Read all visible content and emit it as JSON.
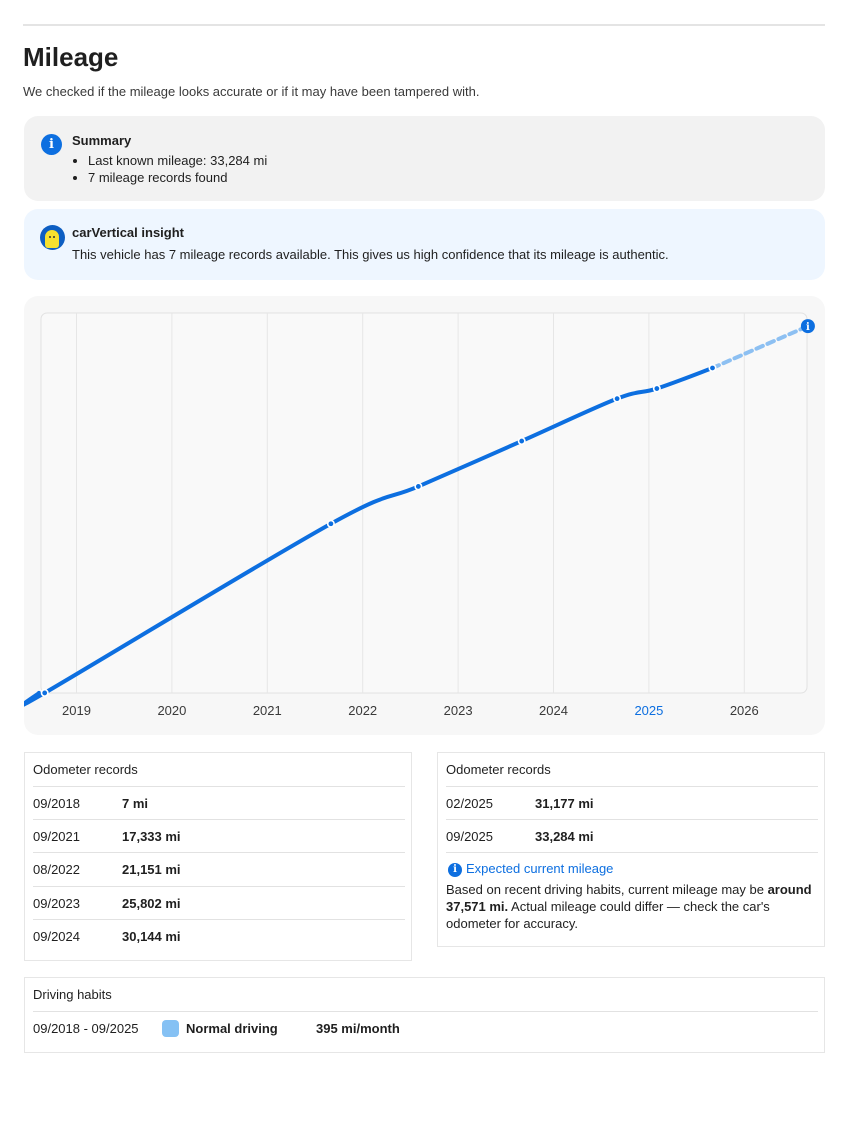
{
  "page": {
    "title": "Mileage",
    "subtitle": "We checked if the mileage looks accurate or if it may have been tampered with."
  },
  "summary": {
    "title": "Summary",
    "items": [
      "Last known mileage: 33,284 mi",
      "7 mileage records found"
    ]
  },
  "insight": {
    "title": "carVertical insight",
    "text": "This vehicle has 7 mileage records available. This gives us high confidence that its mileage is authentic."
  },
  "chart_data": {
    "type": "line",
    "x_tick_labels": [
      "2019",
      "2020",
      "2021",
      "2022",
      "2023",
      "2024",
      "2025",
      "2026"
    ],
    "highlighted_tick": "2025",
    "unit": "mi",
    "series": [
      {
        "points": [
          {
            "date": "2018-09",
            "value": 7
          },
          {
            "date": "2021-09",
            "value": 17333
          },
          {
            "date": "2022-08",
            "value": 21151
          },
          {
            "date": "2023-09",
            "value": 25802
          },
          {
            "date": "2024-09",
            "value": 30144
          },
          {
            "date": "2025-02",
            "value": 31177
          },
          {
            "date": "2025-09",
            "value": 33284
          }
        ]
      }
    ],
    "projection": {
      "date": "2026-09",
      "value": 37571,
      "style": "dashed"
    },
    "grid": "vertical",
    "colors": {
      "line": "#0d6fe0",
      "projection": "#8dc0f2",
      "grid": "#e6e6e6",
      "highlight_tick": "#0d6fe0"
    }
  },
  "records_left": {
    "heading": "Odometer records",
    "rows": [
      {
        "date": "09/2018",
        "value": "7 mi"
      },
      {
        "date": "09/2021",
        "value": "17,333 mi"
      },
      {
        "date": "08/2022",
        "value": "21,151 mi"
      },
      {
        "date": "09/2023",
        "value": "25,802 mi"
      },
      {
        "date": "09/2024",
        "value": "30,144 mi"
      }
    ]
  },
  "records_right": {
    "heading": "Odometer records",
    "rows": [
      {
        "date": "02/2025",
        "value": "31,177 mi"
      },
      {
        "date": "09/2025",
        "value": "33,284 mi"
      }
    ],
    "expected": {
      "title": "Expected current mileage",
      "text_before": "Based on recent driving habits, current mileage may be ",
      "text_bold": "around 37,571 mi.",
      "text_after": " Actual mileage could differ — check the car's odometer for accuracy."
    }
  },
  "driving": {
    "heading": "Driving habits",
    "period": "09/2018 - 09/2025",
    "label": "Normal driving",
    "rate": "395 mi/month"
  },
  "icons": {
    "summary": "info-icon",
    "insight": "carvertical-mascot-icon",
    "expected": "info-icon",
    "projection_end": "info-icon"
  }
}
